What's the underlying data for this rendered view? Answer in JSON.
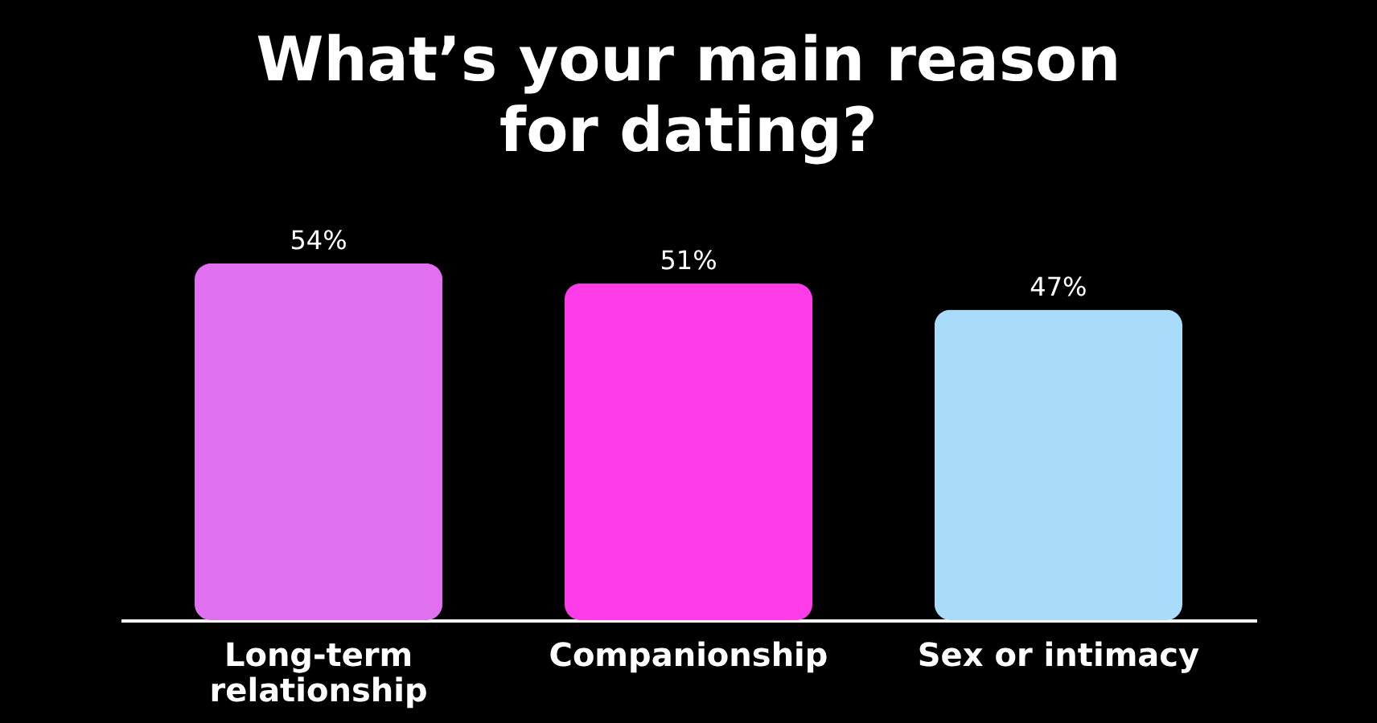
{
  "chart_data": {
    "type": "bar",
    "title": "What’s your main reason for dating?",
    "categories": [
      "Long-term relationship",
      "Companionship",
      "Sex or intimacy"
    ],
    "values": [
      54,
      51,
      47
    ],
    "colors": [
      "#e070f0",
      "#ff3de8",
      "#a8dcfa"
    ],
    "value_labels": [
      "54%",
      "51%",
      "47%"
    ],
    "grid": false
  }
}
